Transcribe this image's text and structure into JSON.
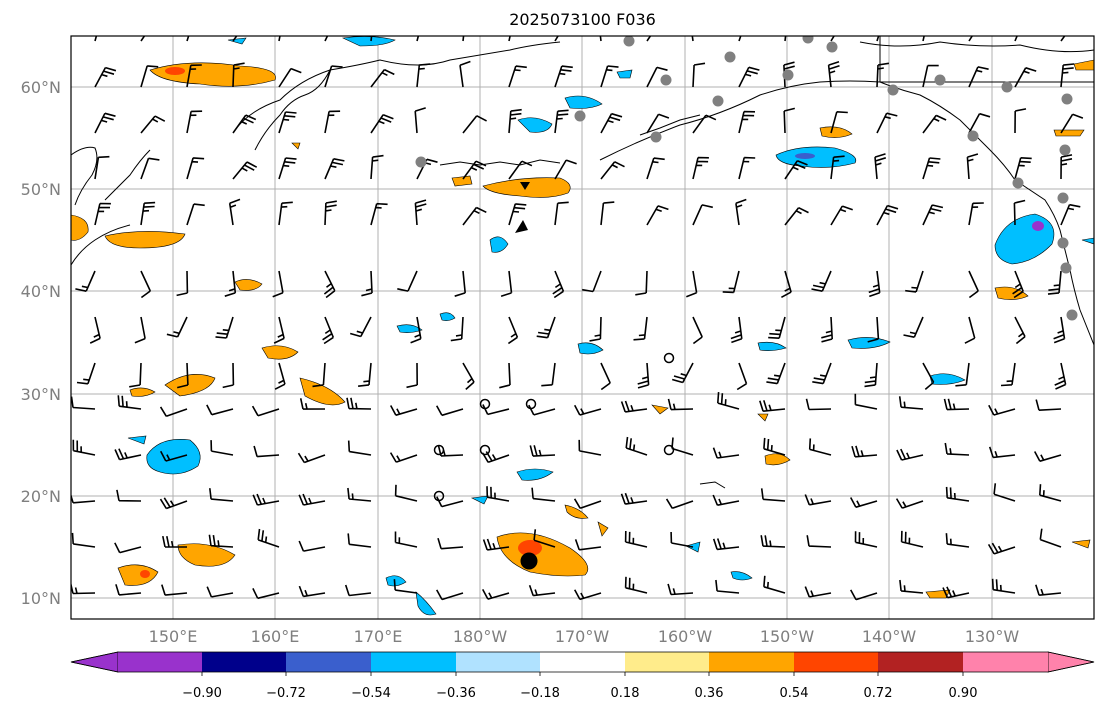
{
  "title": "2025073100 F036",
  "map": {
    "lat_labels": [
      "60°N",
      "50°N",
      "40°N",
      "30°N",
      "20°N",
      "10°N"
    ],
    "lon_labels": [
      "150°E",
      "160°E",
      "170°E",
      "180°W",
      "170°W",
      "160°W",
      "150°W",
      "140°W",
      "130°W"
    ]
  },
  "colorbar": {
    "ticks": [
      "−0.90",
      "−0.72",
      "−0.54",
      "−0.36",
      "−0.18",
      "0.18",
      "0.36",
      "0.54",
      "0.72",
      "0.90"
    ],
    "colors": [
      "#9932cc",
      "#00008b",
      "#3a5fcd",
      "#00bfff",
      "#b0e2ff",
      "#ffffff",
      "#ffec8b",
      "#ffa500",
      "#ff4500",
      "#b22222",
      "#ff82ab"
    ],
    "under_color": "#9932cc",
    "over_color": "#ff82ab"
  }
}
